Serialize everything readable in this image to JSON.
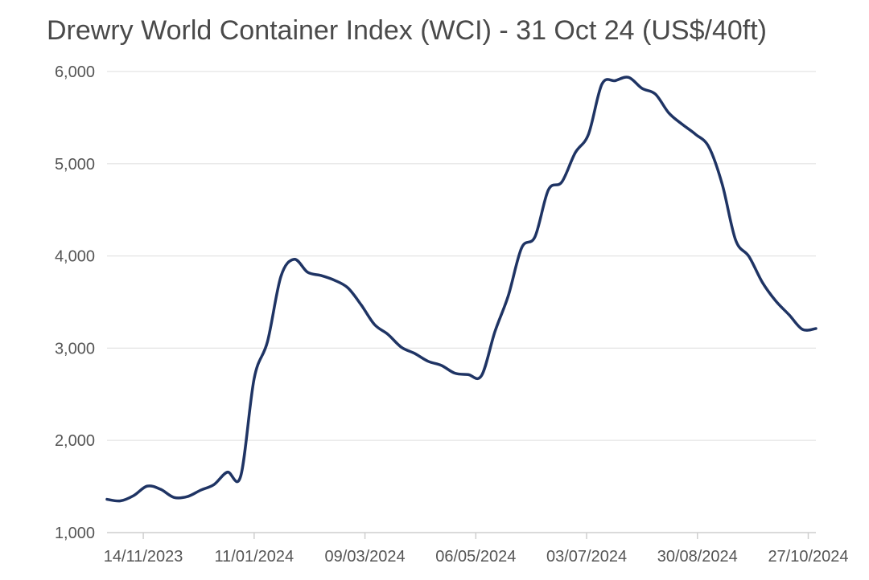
{
  "chart_data": {
    "type": "line",
    "title": "Drewry World Container Index (WCI) - 31 Oct 24 (US$/40ft)",
    "xlabel": "",
    "ylabel": "",
    "ylim": [
      1000,
      6000
    ],
    "yticks": [
      "1,000",
      "2,000",
      "3,000",
      "4,000",
      "5,000",
      "6,000"
    ],
    "xticks": [
      "14/11/2023",
      "11/01/2024",
      "09/03/2024",
      "06/05/2024",
      "03/07/2024",
      "30/08/2024",
      "27/10/2024"
    ],
    "grid": true,
    "line_color": "#1f3464",
    "series": [
      {
        "x": [
          "2023-10-26",
          "2023-11-02",
          "2023-11-09",
          "2023-11-16",
          "2023-11-23",
          "2023-11-30",
          "2023-12-07",
          "2023-12-14",
          "2023-12-21",
          "2023-12-28",
          "2024-01-04",
          "2024-01-11",
          "2024-01-18",
          "2024-01-25",
          "2024-02-01",
          "2024-02-08",
          "2024-02-15",
          "2024-02-22",
          "2024-02-29",
          "2024-03-07",
          "2024-03-14",
          "2024-03-21",
          "2024-03-28",
          "2024-04-04",
          "2024-04-11",
          "2024-04-18",
          "2024-04-25",
          "2024-05-02",
          "2024-05-09",
          "2024-05-16",
          "2024-05-23",
          "2024-05-30",
          "2024-06-06",
          "2024-06-13",
          "2024-06-20",
          "2024-06-27",
          "2024-07-04",
          "2024-07-11",
          "2024-07-18",
          "2024-07-25",
          "2024-08-01",
          "2024-08-08",
          "2024-08-15",
          "2024-08-22",
          "2024-08-29",
          "2024-09-05",
          "2024-09-12",
          "2024-09-19",
          "2024-09-26",
          "2024-10-03",
          "2024-10-10",
          "2024-10-17",
          "2024-10-24",
          "2024-10-31"
        ],
        "values": [
          1361,
          1344,
          1402,
          1504,
          1470,
          1382,
          1390,
          1460,
          1521,
          1656,
          1615,
          2670,
          3072,
          3777,
          3964,
          3823,
          3788,
          3737,
          3655,
          3470,
          3256,
          3150,
          3011,
          2943,
          2858,
          2813,
          2729,
          2714,
          2702,
          3178,
          3568,
          4088,
          4209,
          4716,
          4801,
          5117,
          5321,
          5862,
          5901,
          5936,
          5817,
          5755,
          5551,
          5428,
          5319,
          5181,
          4775,
          4172,
          3993,
          3713,
          3512,
          3361,
          3203,
          3213
        ]
      }
    ]
  }
}
